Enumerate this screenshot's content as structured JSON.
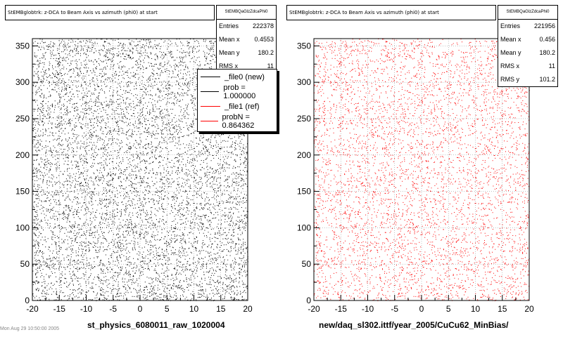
{
  "chart_data": [
    {
      "type": "scatter",
      "title": "StEMBglobtrk: z-DCA to Beam Axis vs azimuth (phi0) at start",
      "xlabel": "st_physics_6080011_raw_1020004",
      "ylabel": "",
      "xlim": [
        -20,
        20
      ],
      "ylim": [
        0,
        360
      ],
      "x_ticks": [
        -20,
        -15,
        -10,
        -5,
        0,
        5,
        10,
        15,
        20
      ],
      "y_ticks": [
        0,
        50,
        100,
        150,
        200,
        250,
        300,
        350
      ],
      "grid": true,
      "color": "#000000",
      "stats": {
        "name": "StEMBQaGlzZdcaPhi0",
        "rows": [
          {
            "label": "Entries",
            "value": "222378"
          },
          {
            "label": "Mean x",
            "value": "0.4553"
          },
          {
            "label": "Mean y",
            "value": "180.2"
          },
          {
            "label": "RMS x",
            "value": "11"
          }
        ]
      },
      "distribution": {
        "x": "uniform",
        "y": "uniform",
        "entries": 222378
      }
    },
    {
      "type": "scatter",
      "title": "StEMBglobtrk: z-DCA to Beam Axis vs azimuth (phi0) at start",
      "xlabel": "new/daq_sl302.ittf/year_2005/CuCu62_MinBias/",
      "ylabel": "",
      "xlim": [
        -20,
        20
      ],
      "ylim": [
        0,
        360
      ],
      "x_ticks": [
        -20,
        -15,
        -10,
        -5,
        0,
        5,
        10,
        15,
        20
      ],
      "y_ticks": [
        0,
        50,
        100,
        150,
        200,
        250,
        300,
        350
      ],
      "grid": true,
      "color": "#ff0000",
      "stats": {
        "name": "StEMBQaGlzZdcaPhi0",
        "rows": [
          {
            "label": "Entries",
            "value": "221956"
          },
          {
            "label": "Mean x",
            "value": "0.456"
          },
          {
            "label": "Mean y",
            "value": "180.2"
          },
          {
            "label": "RMS x",
            "value": "11"
          },
          {
            "label": "RMS y",
            "value": "101.2"
          }
        ]
      },
      "distribution": {
        "x": "uniform",
        "y": "uniform",
        "entries": 221956
      }
    }
  ],
  "legend": {
    "placement": "top-right of left panel",
    "items": [
      {
        "label": "_file0 (new)",
        "color": "#000000"
      },
      {
        "label": "prob = 1.000000",
        "color": "#000000"
      },
      {
        "label": "_file1 (ref)",
        "color": "#ff0000"
      },
      {
        "label": "probN = 0.864362",
        "color": "#ff0000"
      }
    ]
  },
  "footer": {
    "text": "Mon Aug 29 10:50:00 2005"
  }
}
